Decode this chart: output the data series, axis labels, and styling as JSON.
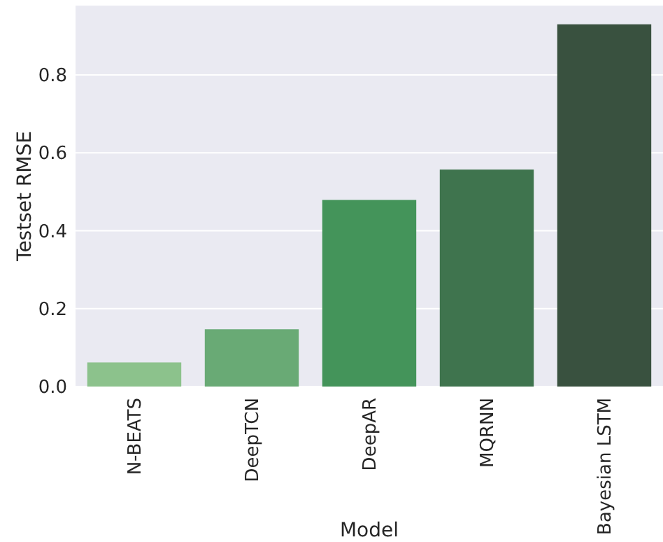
{
  "chart_data": {
    "type": "bar",
    "xlabel": "Model",
    "ylabel": "Testset RMSE",
    "categories": [
      "N-BEATS",
      "DeepTCN",
      "DeepAR",
      "MQRNN",
      "Bayesian LSTM"
    ],
    "values": [
      0.062,
      0.147,
      0.479,
      0.557,
      0.93
    ],
    "colors": [
      "#8cc28c",
      "#69aa75",
      "#44945a",
      "#3f744e",
      "#39513f"
    ],
    "ylim": [
      0,
      0.978
    ],
    "yticks": [
      {
        "value": 0,
        "label": "0.0"
      },
      {
        "value": 0.2,
        "label": "0.2"
      },
      {
        "value": 0.4,
        "label": "0.4"
      },
      {
        "value": 0.6,
        "label": "0.6"
      },
      {
        "value": 0.8,
        "label": "0.8"
      }
    ],
    "grid": "y"
  }
}
